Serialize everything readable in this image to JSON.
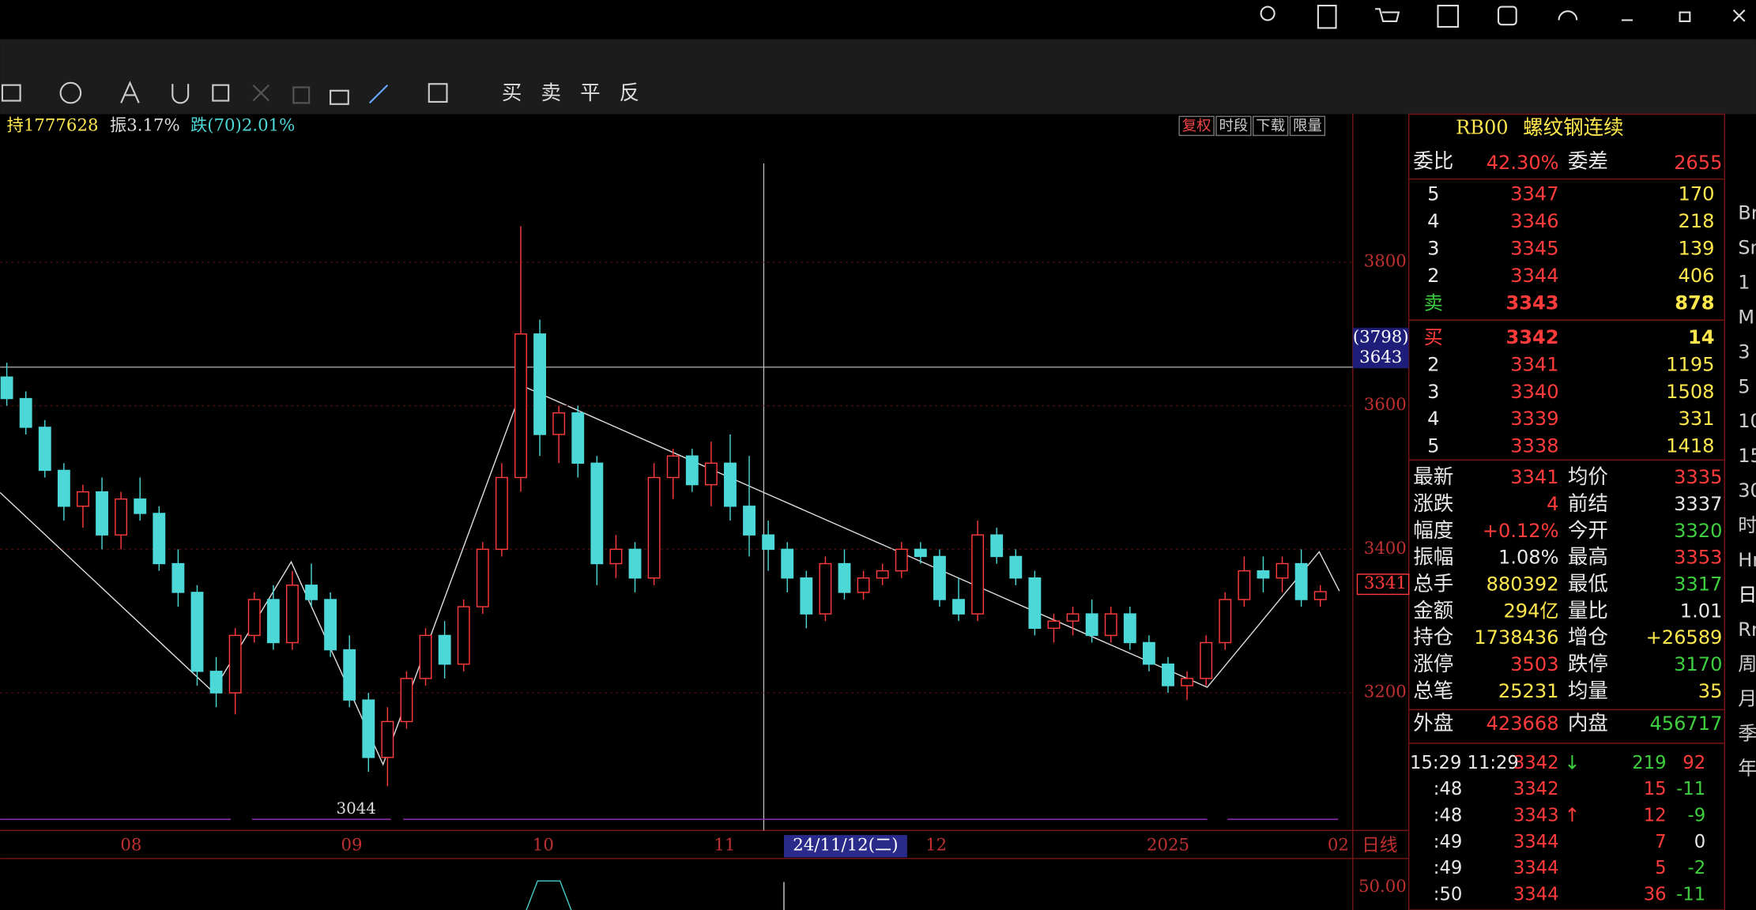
{
  "toolbar_actions": [
    "买",
    "卖",
    "平",
    "反"
  ],
  "info_bar": [
    "持1777628",
    "振3.17%",
    "跌(70)2.01%"
  ],
  "chart_buttons": [
    "复权",
    "时段",
    "下载",
    "限量"
  ],
  "chart_data": {
    "type": "candlestick",
    "ylim": [
      3030,
      4000
    ],
    "yticks": [
      3200,
      3400,
      3600,
      3800
    ],
    "x_labels": [
      "08",
      "09",
      "10",
      "11",
      "12",
      "2025",
      "02"
    ],
    "crosshair_date": "24/11/12(二)",
    "period": "日线",
    "low_label": "3044",
    "price_tag": "3341",
    "crosshair_value": [
      "(3798)",
      "3643"
    ],
    "sub_value": "50.00",
    "candles": [
      [
        3640,
        3660,
        3600,
        3610
      ],
      [
        3610,
        3620,
        3560,
        3570
      ],
      [
        3570,
        3580,
        3500,
        3510
      ],
      [
        3510,
        3520,
        3440,
        3460
      ],
      [
        3460,
        3490,
        3430,
        3480
      ],
      [
        3480,
        3500,
        3400,
        3420
      ],
      [
        3420,
        3480,
        3400,
        3470
      ],
      [
        3470,
        3500,
        3440,
        3450
      ],
      [
        3450,
        3460,
        3370,
        3380
      ],
      [
        3380,
        3400,
        3320,
        3340
      ],
      [
        3340,
        3350,
        3210,
        3230
      ],
      [
        3230,
        3250,
        3180,
        3200
      ],
      [
        3200,
        3290,
        3170,
        3280
      ],
      [
        3280,
        3340,
        3270,
        3330
      ],
      [
        3330,
        3350,
        3260,
        3270
      ],
      [
        3270,
        3370,
        3260,
        3350
      ],
      [
        3350,
        3380,
        3320,
        3330
      ],
      [
        3330,
        3340,
        3250,
        3260
      ],
      [
        3260,
        3280,
        3180,
        3190
      ],
      [
        3190,
        3200,
        3090,
        3110
      ],
      [
        3110,
        3180,
        3070,
        3160
      ],
      [
        3160,
        3230,
        3150,
        3220
      ],
      [
        3220,
        3290,
        3210,
        3280
      ],
      [
        3280,
        3300,
        3220,
        3240
      ],
      [
        3240,
        3330,
        3230,
        3320
      ],
      [
        3320,
        3410,
        3310,
        3400
      ],
      [
        3400,
        3520,
        3390,
        3500
      ],
      [
        3500,
        3850,
        3480,
        3700
      ],
      [
        3700,
        3720,
        3530,
        3560
      ],
      [
        3560,
        3600,
        3520,
        3590
      ],
      [
        3590,
        3600,
        3500,
        3520
      ],
      [
        3520,
        3530,
        3350,
        3380
      ],
      [
        3380,
        3420,
        3360,
        3400
      ],
      [
        3400,
        3410,
        3340,
        3360
      ],
      [
        3360,
        3520,
        3350,
        3500
      ],
      [
        3500,
        3540,
        3470,
        3530
      ],
      [
        3530,
        3540,
        3480,
        3490
      ],
      [
        3490,
        3550,
        3460,
        3520
      ],
      [
        3520,
        3560,
        3440,
        3460
      ],
      [
        3460,
        3530,
        3390,
        3420
      ],
      [
        3420,
        3440,
        3370,
        3400
      ],
      [
        3400,
        3410,
        3340,
        3360
      ],
      [
        3360,
        3370,
        3290,
        3310
      ],
      [
        3310,
        3390,
        3300,
        3380
      ],
      [
        3380,
        3400,
        3330,
        3340
      ],
      [
        3340,
        3370,
        3330,
        3360
      ],
      [
        3360,
        3380,
        3350,
        3370
      ],
      [
        3370,
        3410,
        3360,
        3400
      ],
      [
        3400,
        3410,
        3380,
        3390
      ],
      [
        3390,
        3400,
        3320,
        3330
      ],
      [
        3330,
        3360,
        3300,
        3310
      ],
      [
        3310,
        3440,
        3300,
        3420
      ],
      [
        3420,
        3430,
        3380,
        3390
      ],
      [
        3390,
        3400,
        3350,
        3360
      ],
      [
        3360,
        3370,
        3280,
        3290
      ],
      [
        3290,
        3310,
        3270,
        3300
      ],
      [
        3300,
        3320,
        3280,
        3310
      ],
      [
        3310,
        3330,
        3270,
        3280
      ],
      [
        3280,
        3320,
        3270,
        3310
      ],
      [
        3310,
        3320,
        3260,
        3270
      ],
      [
        3270,
        3280,
        3230,
        3240
      ],
      [
        3240,
        3250,
        3200,
        3210
      ],
      [
        3210,
        3230,
        3190,
        3220
      ],
      [
        3220,
        3280,
        3210,
        3270
      ],
      [
        3270,
        3340,
        3260,
        3330
      ],
      [
        3330,
        3390,
        3320,
        3370
      ],
      [
        3370,
        3390,
        3340,
        3360
      ],
      [
        3360,
        3390,
        3340,
        3380
      ],
      [
        3380,
        3400,
        3320,
        3330
      ],
      [
        3330,
        3350,
        3320,
        3341
      ]
    ]
  },
  "quote": {
    "code": "RB00",
    "name": "螺纹钢连续",
    "weibi_label": "委比",
    "weibi": "42.30%",
    "weicha_label": "委差",
    "weicha": "2655"
  },
  "asks": [
    [
      "5",
      "3347",
      "170"
    ],
    [
      "4",
      "3346",
      "218"
    ],
    [
      "3",
      "3345",
      "139"
    ],
    [
      "2",
      "3344",
      "406"
    ],
    [
      "卖",
      "3343",
      "878"
    ]
  ],
  "bids": [
    [
      "买",
      "3342",
      "14"
    ],
    [
      "2",
      "3341",
      "1195"
    ],
    [
      "3",
      "3340",
      "1508"
    ],
    [
      "4",
      "3339",
      "331"
    ],
    [
      "5",
      "3338",
      "1418"
    ]
  ],
  "stats": [
    [
      "最新",
      "3341",
      "均价",
      "3335"
    ],
    [
      "涨跌",
      "4",
      "前结",
      "3337"
    ],
    [
      "幅度",
      "+0.12%",
      "今开",
      "3320"
    ],
    [
      "振幅",
      "1.08%",
      "最高",
      "3353"
    ],
    [
      "总手",
      "880392",
      "最低",
      "3317"
    ],
    [
      "金额",
      "294亿",
      "量比",
      "1.01"
    ],
    [
      "持仓",
      "1738436",
      "增仓",
      "+26589"
    ],
    [
      "涨停",
      "3503",
      "跌停",
      "3170"
    ],
    [
      "总笔",
      "25231",
      "均量",
      "35"
    ]
  ],
  "outer": [
    "外盘",
    "423668",
    "内盘",
    "456717"
  ],
  "trades": [
    [
      "15:29 11:29",
      "3342",
      "↓",
      "219",
      "92"
    ],
    [
      ":48",
      "3342",
      "",
      "15",
      "-11"
    ],
    [
      ":48",
      "3343",
      "↑",
      "12",
      "-9"
    ],
    [
      ":49",
      "3344",
      "",
      "7",
      "0"
    ],
    [
      ":49",
      "3344",
      "",
      "5",
      "-2"
    ],
    [
      ":50",
      "3344",
      "",
      "36",
      "-11"
    ]
  ],
  "side_menu": [
    "Br",
    "Sn",
    "1",
    "Mr",
    "3",
    "5",
    "10",
    "15",
    "30",
    "时",
    "Hr",
    "日",
    "Rn",
    "周",
    "月",
    "季",
    "年"
  ]
}
